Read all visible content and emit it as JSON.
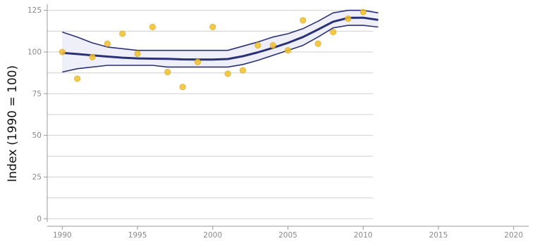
{
  "chart_data": {
    "type": "scatter",
    "title": "",
    "xlabel": "",
    "ylabel": "Index (1990 = 100)",
    "xlim": [
      1989,
      2021
    ],
    "ylim": [
      -2,
      127
    ],
    "x_ticks": [
      1990,
      1995,
      2000,
      2005,
      2010,
      2015,
      2020
    ],
    "x_tick_labels": [
      "1990",
      "1995",
      "2000",
      "2005",
      "2010",
      "2015",
      "2020"
    ],
    "y_ticks": [
      0,
      25,
      50,
      75,
      100,
      125
    ],
    "y_tick_labels": [
      "0",
      "25",
      "50",
      "75",
      "100",
      "125"
    ],
    "grid": "horizontal",
    "gridlines_y": [
      0,
      12.5,
      25,
      37.5,
      50,
      62.5,
      75,
      87.5,
      100,
      112.5,
      125
    ],
    "colors": {
      "points": "#f0c02c",
      "trend": "#2b3177",
      "band_fill": "#eeeff8",
      "grid": "#cfcfcf",
      "axis": "#999999"
    },
    "series": [
      {
        "type": "scatter",
        "x": [
          1990,
          1991,
          1992,
          1993,
          1994,
          1995,
          1996,
          1997,
          1998,
          1999,
          2000,
          2001,
          2002,
          2003,
          2004,
          2005,
          2006,
          2007,
          2008,
          2009,
          2010
        ],
        "y": [
          100,
          84,
          97,
          105,
          111,
          99,
          115,
          88,
          79,
          94,
          115,
          87,
          89,
          104,
          104,
          101,
          119,
          105,
          112,
          120,
          124
        ]
      },
      {
        "type": "line",
        "x": [
          1990,
          1991,
          1992,
          1993,
          1994,
          1995,
          1996,
          1997,
          1998,
          1999,
          2000,
          2001,
          2002,
          2003,
          2004,
          2005,
          2006,
          2007,
          2008,
          2009,
          2010,
          2011
        ],
        "y": [
          99.5,
          98.8,
          98,
          97.3,
          96.6,
          96.2,
          96,
          95.9,
          95.6,
          95.5,
          95.5,
          95.8,
          97.5,
          99.8,
          102.5,
          105.5,
          109,
          113.5,
          118.2,
          120.5,
          120.6,
          119.3
        ]
      },
      {
        "type": "line",
        "x": [
          1990,
          1991,
          1992,
          1993,
          1994,
          1995,
          1996,
          1997,
          1998,
          1999,
          2000,
          2001,
          2002,
          2003,
          2004,
          2005,
          2006,
          2007,
          2008,
          2009,
          2010,
          2011
        ],
        "y": [
          112,
          109,
          105.5,
          103,
          102,
          101,
          101,
          101,
          101,
          101,
          101,
          101,
          103.5,
          106,
          109,
          111,
          114,
          118.5,
          123.5,
          125,
          125,
          123.5
        ]
      },
      {
        "type": "line",
        "x": [
          1990,
          1991,
          1992,
          1993,
          1994,
          1995,
          1996,
          1997,
          1998,
          1999,
          2000,
          2001,
          2002,
          2003,
          2004,
          2005,
          2006,
          2007,
          2008,
          2009,
          2010,
          2011
        ],
        "y": [
          88,
          90,
          91,
          92,
          92,
          92,
          92,
          91,
          91,
          91,
          91,
          91,
          92.5,
          95,
          98,
          101,
          104,
          109,
          114.5,
          116,
          116,
          115
        ]
      }
    ]
  }
}
